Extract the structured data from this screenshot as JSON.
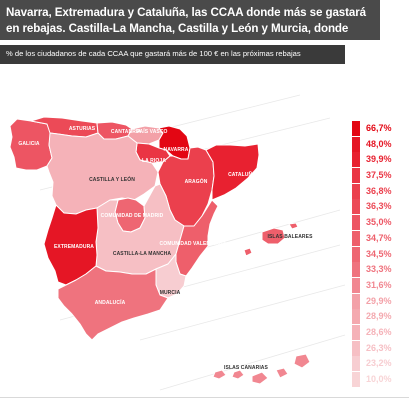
{
  "headline": "Navarra, Extremadura y Cataluña, las CCAA donde más se gastará en rebajas. Castilla-La Mancha, Castilla y León y Murcia, donde menos",
  "subheadline": "% de los ciudadanos de cada CCAA que gastará más de 100 € en las próximas rebajas",
  "colors": {
    "header_bg": "#4a4a4a",
    "subheader_bg": "#3a3a3a",
    "max": "#e30613",
    "min": "#f8d4d6"
  },
  "regions": [
    {
      "id": "galicia",
      "label": "GALICIA",
      "value": 35.0,
      "color": "#ed5563"
    },
    {
      "id": "asturias",
      "label": "ASTURIAS",
      "value": 36.3,
      "color": "#ec4a57"
    },
    {
      "id": "cantabria",
      "label": "CANTABRIA",
      "value": 35.0,
      "color": "#ed5563"
    },
    {
      "id": "pais-vasco",
      "label": "PAÍS VASCO",
      "value": 29.9,
      "color": "#f3a1a8"
    },
    {
      "id": "navarra",
      "label": "NAVARRA",
      "value": 66.7,
      "color": "#e30613"
    },
    {
      "id": "la-rioja",
      "label": "LA RIOJA",
      "value": 37.5,
      "color": "#ea3544"
    },
    {
      "id": "aragon",
      "label": "ARAGÓN",
      "value": 36.8,
      "color": "#eb404d"
    },
    {
      "id": "cataluna",
      "label": "CATALUÑA",
      "value": 39.9,
      "color": "#e82130"
    },
    {
      "id": "castilla-leon",
      "label": "CASTILLA Y LEÓN",
      "value": 28.6,
      "color": "#f5b2b8"
    },
    {
      "id": "madrid",
      "label": "COMUNIDAD DE MADRID",
      "value": 34.5,
      "color": "#ee6672"
    },
    {
      "id": "castilla-mancha",
      "label": "CASTILLA-LA MANCHA",
      "value": 26.3,
      "color": "#f6bfc4"
    },
    {
      "id": "extremadura",
      "label": "EXTREMADURA",
      "value": 48.0,
      "color": "#e51625"
    },
    {
      "id": "valencia",
      "label": "COMUNIDAD VALENCIANA",
      "value": 34.7,
      "color": "#ee5f6b"
    },
    {
      "id": "murcia",
      "label": "MURCIA",
      "value": 23.2,
      "color": "#f7cdd1"
    },
    {
      "id": "andalucia",
      "label": "ANDALUCÍA",
      "value": 33.3,
      "color": "#ef737e"
    },
    {
      "id": "baleares",
      "label": "ISLAS BALEARES",
      "value": 34.7,
      "color": "#ee5f6b"
    },
    {
      "id": "canarias",
      "label": "ISLAS CANARIAS",
      "value": 31.6,
      "color": "#f18791"
    }
  ],
  "legend": [
    {
      "label": "66,7%",
      "color": "#e30613"
    },
    {
      "label": "48,0%",
      "color": "#e51625"
    },
    {
      "label": "39,9%",
      "color": "#e82130"
    },
    {
      "label": "37,5%",
      "color": "#ea3544"
    },
    {
      "label": "36,8%",
      "color": "#eb404d"
    },
    {
      "label": "36,3%",
      "color": "#ec4a57"
    },
    {
      "label": "35,0%",
      "color": "#ed5563"
    },
    {
      "label": "34,7%",
      "color": "#ee5f6b"
    },
    {
      "label": "34,5%",
      "color": "#ee6672"
    },
    {
      "label": "33,3%",
      "color": "#ef737e"
    },
    {
      "label": "31,6%",
      "color": "#f18791"
    },
    {
      "label": "29,9%",
      "color": "#f3a1a8"
    },
    {
      "label": "28,9%",
      "color": "#f4a9af"
    },
    {
      "label": "28,6%",
      "color": "#f5b2b8"
    },
    {
      "label": "26,3%",
      "color": "#f6bfc4"
    },
    {
      "label": "23,2%",
      "color": "#f7cdd1"
    },
    {
      "label": "10,0%",
      "color": "#f8d4d6"
    }
  ]
}
